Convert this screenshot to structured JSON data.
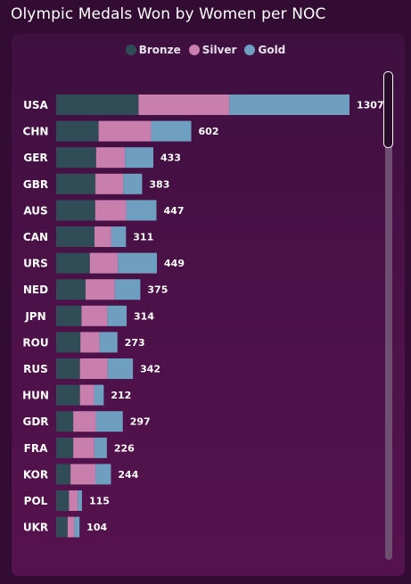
{
  "page": {
    "title": "Olympic Medals Won by Women per NOC"
  },
  "colors": {
    "background": "#330c33",
    "bronze": "#304c57",
    "silver": "#c97fae",
    "gold": "#6e9ec0"
  },
  "chart_data": {
    "type": "bar",
    "orientation": "horizontal",
    "stacked": true,
    "title": "Olympic Medals Won by Women per NOC",
    "legend": {
      "position": "top-center",
      "entries": [
        "Bronze",
        "Silver",
        "Gold"
      ]
    },
    "categories": [
      "USA",
      "CHN",
      "GER",
      "GBR",
      "AUS",
      "CAN",
      "URS",
      "NED",
      "JPN",
      "ROU",
      "RUS",
      "HUN",
      "GDR",
      "FRA",
      "KOR",
      "POL",
      "UKR"
    ],
    "series": [
      {
        "name": "Bronze",
        "color": "#304c57",
        "values": [
          367,
          189,
          178,
          175,
          174,
          171,
          150,
          131,
          113,
          108,
          106,
          106,
          76,
          76,
          64,
          57,
          51
        ]
      },
      {
        "name": "Silver",
        "color": "#c97fae",
        "values": [
          405,
          234,
          129,
          124,
          138,
          75,
          125,
          130,
          115,
          85,
          123,
          63,
          101,
          94,
          111,
          39,
          30
        ]
      },
      {
        "name": "Gold",
        "color": "#6e9ec0",
        "values": [
          535,
          179,
          126,
          84,
          135,
          65,
          174,
          114,
          86,
          80,
          113,
          43,
          120,
          56,
          69,
          19,
          23
        ]
      }
    ],
    "totals": [
      1307,
      602,
      433,
      383,
      447,
      311,
      449,
      375,
      314,
      273,
      342,
      212,
      297,
      226,
      244,
      115,
      104
    ],
    "xlim": [
      0,
      1307
    ],
    "grid": false,
    "axes_visible": false
  }
}
